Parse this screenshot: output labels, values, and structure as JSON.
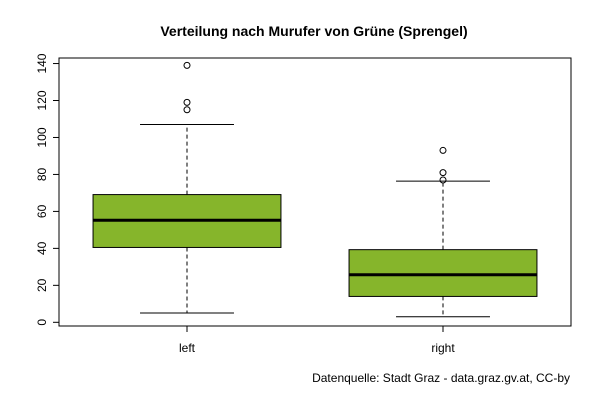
{
  "chart_data": {
    "type": "boxplot",
    "title": "Verteilung nach Murufer von Grüne (Sprengel)",
    "xlabel": "",
    "ylabel": "",
    "categories": [
      "left",
      "right"
    ],
    "ylim": [
      -2,
      143
    ],
    "yticks": [
      0,
      20,
      40,
      60,
      80,
      100,
      120,
      140
    ],
    "box_color": "#86b52b",
    "boxes": [
      {
        "category": "left",
        "whisker_low": 5,
        "q1": 40.5,
        "median": 55.2,
        "q3": 69.1,
        "whisker_high": 107,
        "outliers": [
          139,
          119,
          115
        ]
      },
      {
        "category": "right",
        "whisker_low": 3,
        "q1": 14,
        "median": 25.7,
        "q3": 39.3,
        "whisker_high": 76.4,
        "outliers": [
          93,
          81,
          77
        ]
      }
    ],
    "source": "Datenquelle: Stadt Graz - data.graz.gv.at, CC-by"
  }
}
